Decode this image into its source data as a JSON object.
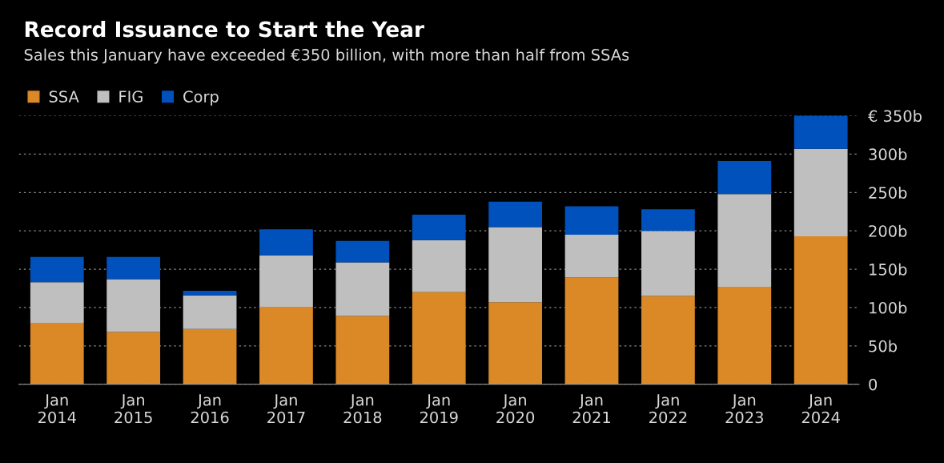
{
  "chart_data": {
    "type": "bar",
    "title": "Record Issuance to Start the Year",
    "subtitle": "Sales this January have exceeded €350 billion, with more than half from SSAs",
    "categories": [
      "Jan\n2014",
      "Jan\n2015",
      "Jan\n2016",
      "Jan\n2017",
      "Jan\n2018",
      "Jan\n2019",
      "Jan\n2020",
      "Jan\n2021",
      "Jan\n2022",
      "Jan\n2023",
      "Jan\n2024"
    ],
    "stacked": true,
    "series": [
      {
        "name": "SSA",
        "color": "#db8826",
        "values": [
          80,
          68,
          72,
          101,
          89,
          120,
          107,
          139,
          115,
          127,
          193
        ]
      },
      {
        "name": "FIG",
        "color": "#bfbfbf",
        "values": [
          53,
          69,
          44,
          67,
          70,
          68,
          98,
          56,
          85,
          121,
          114
        ]
      },
      {
        "name": "Corp",
        "color": "#0051bb",
        "values": [
          33,
          29,
          6,
          34,
          28,
          33,
          33,
          37,
          28,
          43,
          43
        ]
      }
    ],
    "ylim": [
      0,
      350
    ],
    "yticks": [
      0,
      {
        "value": 50,
        "label": "50b"
      },
      {
        "value": 100,
        "label": "100b"
      },
      {
        "value": 150,
        "label": "150b"
      },
      {
        "value": 200,
        "label": "200b"
      },
      {
        "value": 250,
        "label": "250b"
      },
      {
        "value": 300,
        "label": "300b"
      },
      {
        "value": 350,
        "label": "€ 350b"
      }
    ],
    "grid": "y",
    "legend": "top left"
  }
}
